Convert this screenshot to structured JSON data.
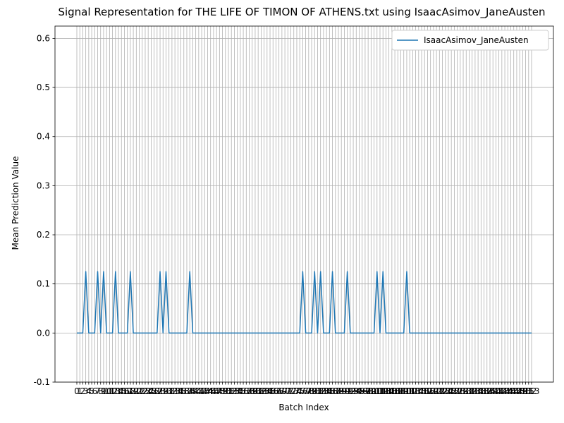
{
  "chart_data": {
    "type": "line",
    "title": "Signal Representation for THE LIFE OF TIMON OF ATHENS.txt using IsaacAsimov_JaneAusten",
    "xlabel": "Batch Index",
    "ylabel": "Mean Prediction Value",
    "xlim": [
      0,
      153
    ],
    "ylim": [
      -0.1,
      0.625
    ],
    "y_ticks": [
      -0.1,
      0.0,
      0.1,
      0.2,
      0.3,
      0.4,
      0.5,
      0.6
    ],
    "grid": true,
    "legend_position": "top-right",
    "series": [
      {
        "name": "IsaacAsimov_JaneAusten",
        "color": "#1f77b4",
        "peak_value": 0.125,
        "peak_indices": [
          3,
          7,
          9,
          13,
          18,
          28,
          30,
          38,
          76,
          80,
          82,
          86,
          91,
          101,
          103,
          111
        ]
      }
    ]
  }
}
